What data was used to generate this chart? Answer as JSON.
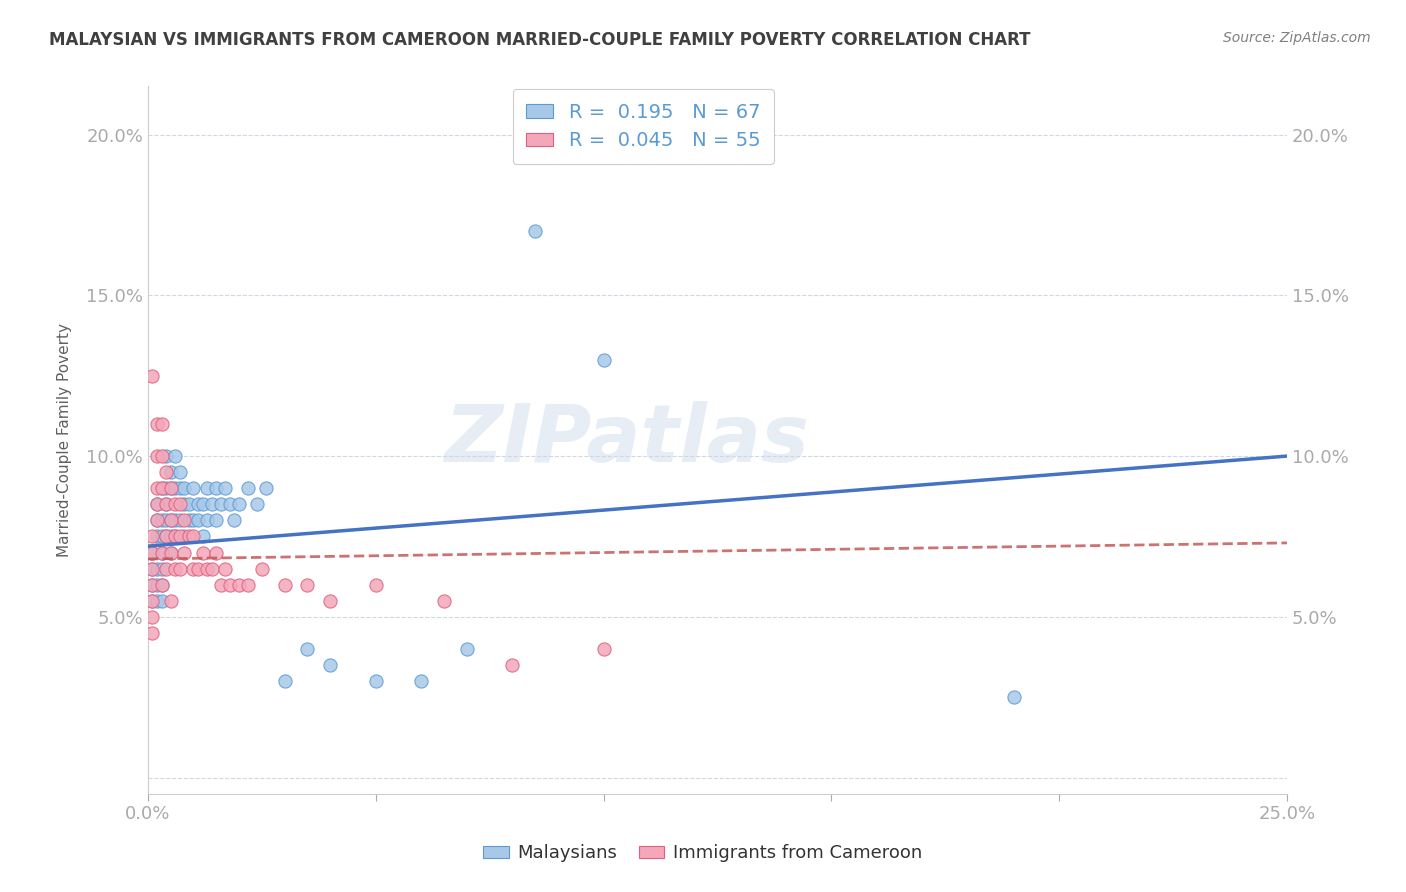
{
  "title": "MALAYSIAN VS IMMIGRANTS FROM CAMEROON MARRIED-COUPLE FAMILY POVERTY CORRELATION CHART",
  "source": "Source: ZipAtlas.com",
  "ylabel": "Married-Couple Family Poverty",
  "xlim": [
    0.0,
    0.25
  ],
  "ylim": [
    -0.005,
    0.215
  ],
  "x_ticks": [
    0.0,
    0.05,
    0.1,
    0.15,
    0.2,
    0.25
  ],
  "x_tick_labels": [
    "0.0%",
    "",
    "",
    "",
    "",
    "25.0%"
  ],
  "y_ticks": [
    0.0,
    0.05,
    0.1,
    0.15,
    0.2
  ],
  "y_tick_labels": [
    "",
    "5.0%",
    "10.0%",
    "15.0%",
    "20.0%"
  ],
  "legend1_label": "R =  0.195   N = 67",
  "legend2_label": "R =  0.045   N = 55",
  "legend_labels_bottom": [
    "Malaysians",
    "Immigrants from Cameroon"
  ],
  "blue_fill": "#a8c8e8",
  "blue_edge": "#5b9bd5",
  "pink_fill": "#f4a7b9",
  "pink_edge": "#e06080",
  "blue_line_color": "#4472c4",
  "pink_line_color": "#c0504d",
  "axis_tick_color": "#5b9bd5",
  "grid_color": "#d0d8e8",
  "title_color": "#404040",
  "source_color": "#808080",
  "ylabel_color": "#606060",
  "watermark_text": "ZIPatlas",
  "malaysians_x": [
    0.001,
    0.001,
    0.001,
    0.001,
    0.002,
    0.002,
    0.002,
    0.002,
    0.002,
    0.002,
    0.003,
    0.003,
    0.003,
    0.003,
    0.003,
    0.003,
    0.003,
    0.004,
    0.004,
    0.004,
    0.004,
    0.004,
    0.005,
    0.005,
    0.005,
    0.005,
    0.005,
    0.006,
    0.006,
    0.006,
    0.006,
    0.007,
    0.007,
    0.007,
    0.008,
    0.008,
    0.008,
    0.009,
    0.009,
    0.01,
    0.01,
    0.011,
    0.011,
    0.012,
    0.012,
    0.013,
    0.013,
    0.014,
    0.015,
    0.015,
    0.016,
    0.017,
    0.018,
    0.019,
    0.02,
    0.022,
    0.024,
    0.026,
    0.03,
    0.035,
    0.04,
    0.05,
    0.06,
    0.07,
    0.085,
    0.1,
    0.19
  ],
  "malaysians_y": [
    0.065,
    0.06,
    0.07,
    0.055,
    0.085,
    0.075,
    0.08,
    0.065,
    0.055,
    0.06,
    0.09,
    0.08,
    0.075,
    0.07,
    0.065,
    0.06,
    0.055,
    0.1,
    0.09,
    0.085,
    0.08,
    0.075,
    0.095,
    0.09,
    0.08,
    0.075,
    0.07,
    0.1,
    0.09,
    0.08,
    0.075,
    0.095,
    0.09,
    0.08,
    0.09,
    0.085,
    0.075,
    0.085,
    0.08,
    0.09,
    0.08,
    0.085,
    0.08,
    0.085,
    0.075,
    0.09,
    0.08,
    0.085,
    0.09,
    0.08,
    0.085,
    0.09,
    0.085,
    0.08,
    0.085,
    0.09,
    0.085,
    0.09,
    0.03,
    0.04,
    0.035,
    0.03,
    0.03,
    0.04,
    0.17,
    0.13,
    0.025
  ],
  "cameroon_x": [
    0.001,
    0.001,
    0.001,
    0.001,
    0.001,
    0.001,
    0.001,
    0.001,
    0.002,
    0.002,
    0.002,
    0.002,
    0.002,
    0.003,
    0.003,
    0.003,
    0.003,
    0.003,
    0.004,
    0.004,
    0.004,
    0.004,
    0.005,
    0.005,
    0.005,
    0.005,
    0.006,
    0.006,
    0.006,
    0.007,
    0.007,
    0.007,
    0.008,
    0.008,
    0.009,
    0.01,
    0.01,
    0.011,
    0.012,
    0.013,
    0.014,
    0.015,
    0.016,
    0.017,
    0.018,
    0.02,
    0.022,
    0.025,
    0.03,
    0.035,
    0.04,
    0.05,
    0.065,
    0.08,
    0.1
  ],
  "cameroon_y": [
    0.125,
    0.065,
    0.075,
    0.06,
    0.055,
    0.07,
    0.05,
    0.045,
    0.11,
    0.1,
    0.09,
    0.085,
    0.08,
    0.11,
    0.1,
    0.09,
    0.07,
    0.06,
    0.095,
    0.085,
    0.075,
    0.065,
    0.09,
    0.08,
    0.07,
    0.055,
    0.085,
    0.075,
    0.065,
    0.085,
    0.075,
    0.065,
    0.08,
    0.07,
    0.075,
    0.075,
    0.065,
    0.065,
    0.07,
    0.065,
    0.065,
    0.07,
    0.06,
    0.065,
    0.06,
    0.06,
    0.06,
    0.065,
    0.06,
    0.06,
    0.055,
    0.06,
    0.055,
    0.035,
    0.04
  ],
  "blue_trendline_start_y": 0.072,
  "blue_trendline_end_y": 0.1,
  "pink_trendline_start_y": 0.068,
  "pink_trendline_end_y": 0.073
}
